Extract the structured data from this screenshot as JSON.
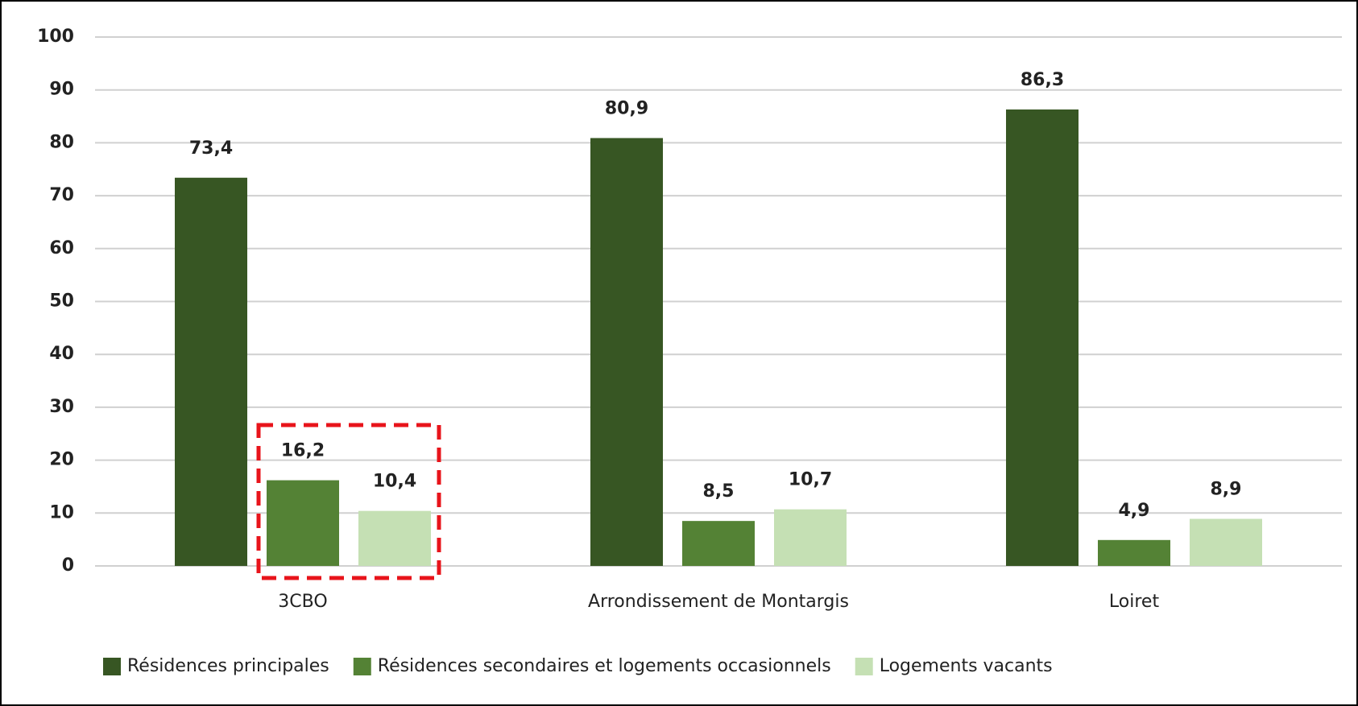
{
  "chart_data": {
    "type": "bar",
    "categories": [
      "3CBO",
      "Arrondissement de Montargis",
      "Loiret"
    ],
    "series": [
      {
        "name": "Résidences principales",
        "color": "#375623",
        "values": [
          73.4,
          80.9,
          86.3
        ],
        "value_labels": [
          "73,4",
          "80,9",
          "86,3"
        ]
      },
      {
        "name": "Résidences secondaires et logements occasionnels",
        "color": "#548235",
        "values": [
          16.2,
          8.5,
          4.9
        ],
        "value_labels": [
          "16,2",
          "8,5",
          "4,9"
        ]
      },
      {
        "name": "Logements vacants",
        "color": "#c5e0b4",
        "values": [
          10.4,
          10.7,
          8.9
        ],
        "value_labels": [
          "10,4",
          "10,7",
          "8,9"
        ]
      }
    ],
    "ylim": [
      0,
      100
    ],
    "yticks": [
      0,
      10,
      20,
      30,
      40,
      50,
      60,
      70,
      80,
      90,
      100
    ],
    "grid": true,
    "legend": "bottom"
  }
}
